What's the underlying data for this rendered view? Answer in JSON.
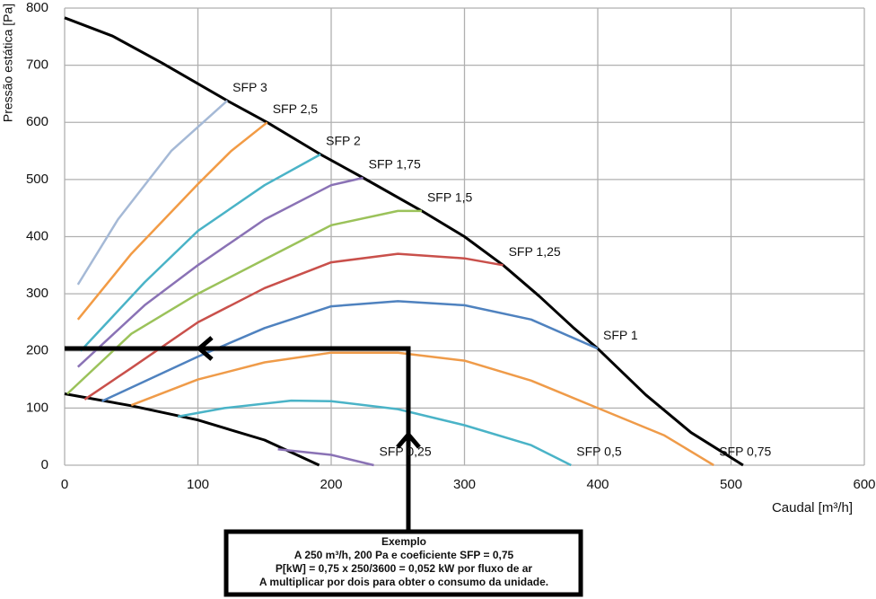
{
  "chart_data": {
    "type": "line",
    "xlabel": "Caudal [m³/h]",
    "ylabel": "Pressão estática [Pa]",
    "xlim": [
      0,
      600
    ],
    "xticks": [
      0,
      100,
      200,
      300,
      400,
      500,
      600
    ],
    "ylim": [
      0,
      800
    ],
    "yticks": [
      0,
      100,
      200,
      300,
      400,
      500,
      600,
      700,
      800
    ],
    "grid": true,
    "series": [
      {
        "color": "#000000",
        "x": [
          0,
          36,
          73,
          122,
          152,
          192,
          224,
          268,
          300,
          329,
          356,
          382,
          400,
          436,
          470,
          490,
          509
        ],
        "values": [
          783,
          751,
          704,
          638,
          600,
          544,
          503,
          445,
          400,
          350,
          296,
          240,
          204,
          123,
          57,
          28,
          0
        ]
      },
      {
        "color": "#000000",
        "x": [
          0,
          50,
          100,
          150,
          191
        ],
        "values": [
          125,
          104,
          79,
          44,
          0
        ]
      },
      {
        "name": "SFP 3",
        "color": "#a5b9d6",
        "x": [
          10,
          40,
          80,
          122
        ],
        "values": [
          316,
          430,
          550,
          638
        ]
      },
      {
        "name": "SFP 2,5",
        "color": "#f29b45",
        "x": [
          10,
          50,
          100,
          125,
          152
        ],
        "values": [
          255,
          370,
          492,
          550,
          600
        ]
      },
      {
        "name": "SFP 2",
        "color": "#4ab3c7",
        "x": [
          12,
          60,
          100,
          150,
          192
        ],
        "values": [
          200,
          320,
          410,
          490,
          544
        ]
      },
      {
        "name": "SFP 1,75",
        "color": "#8a72b5",
        "x": [
          10,
          60,
          100,
          150,
          200,
          224
        ],
        "values": [
          172,
          280,
          350,
          430,
          490,
          503
        ]
      },
      {
        "name": "SFP 1,5",
        "color": "#9bc25a",
        "x": [
          2,
          50,
          100,
          150,
          200,
          250,
          268
        ],
        "values": [
          125,
          230,
          300,
          360,
          420,
          445,
          445
        ]
      },
      {
        "name": "SFP 1,25",
        "color": "#c9504b",
        "x": [
          15,
          50,
          100,
          150,
          200,
          250,
          300,
          329
        ],
        "values": [
          115,
          170,
          250,
          310,
          355,
          370,
          362,
          350
        ]
      },
      {
        "name": "SFP 1",
        "color": "#4f82bf",
        "x": [
          28,
          100,
          150,
          200,
          250,
          300,
          350,
          400
        ],
        "values": [
          112,
          190,
          240,
          278,
          287,
          280,
          255,
          204
        ]
      },
      {
        "name": "SFP 0,75",
        "color": "#ef9b49",
        "x": [
          50,
          100,
          150,
          200,
          250,
          300,
          350,
          400,
          450,
          487
        ],
        "values": [
          105,
          150,
          180,
          197,
          197,
          183,
          148,
          100,
          52,
          0
        ]
      },
      {
        "name": "SFP 0,5",
        "color": "#4ab3c7",
        "x": [
          85,
          120,
          170,
          200,
          250,
          300,
          350,
          380
        ],
        "values": [
          85,
          100,
          113,
          112,
          98,
          70,
          35,
          0
        ]
      },
      {
        "name": "SFP 0,25",
        "color": "#8a72b5",
        "x": [
          160,
          200,
          232
        ],
        "values": [
          28,
          18,
          0
        ]
      }
    ],
    "annotation": [
      "Exemplo",
      "A 250 m³/h, 200 Pa e coeficiente SFP = 0,75",
      "P[kW] = 0,75 x 250/3600 = 0,052 kW por fluxo de ar",
      "A multiplicar por dois para obter o consumo da unidade."
    ]
  }
}
